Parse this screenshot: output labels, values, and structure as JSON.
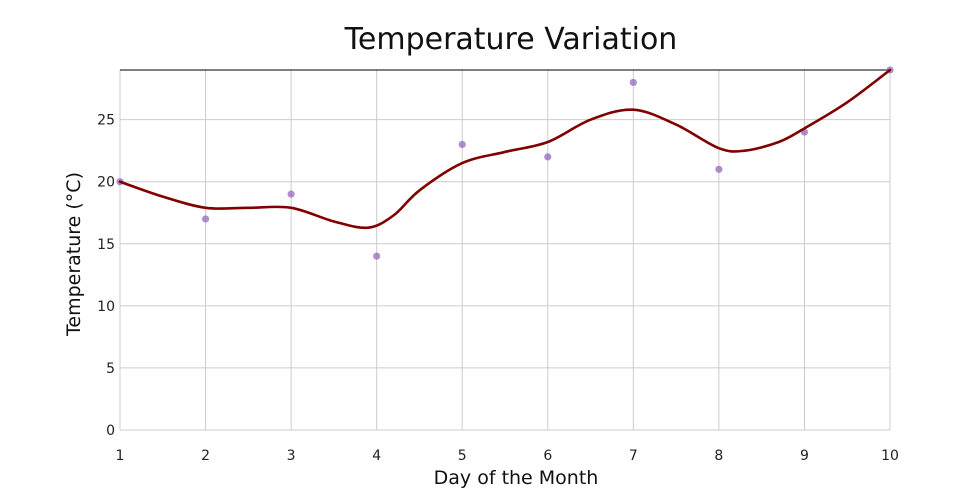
{
  "chart_data": {
    "type": "scatter",
    "title": "Temperature Variation",
    "xlabel": "Day of the Month",
    "ylabel": "Temperature (°C)",
    "x": [
      1,
      2,
      3,
      4,
      5,
      6,
      7,
      8,
      9,
      10
    ],
    "y": [
      20,
      17,
      19,
      14,
      23,
      22,
      28,
      21,
      24,
      29
    ],
    "smooth": {
      "x": [
        1,
        1.5,
        2,
        2.5,
        3,
        3.5,
        3.9,
        4.2,
        4.5,
        5,
        5.5,
        6,
        6.5,
        7,
        7.5,
        8,
        8.3,
        8.7,
        9,
        9.5,
        10
      ],
      "y": [
        20,
        18.8,
        17.9,
        17.9,
        17.9,
        16.8,
        16.3,
        17.3,
        19.3,
        21.5,
        22.4,
        23.2,
        25.0,
        25.8,
        24.6,
        22.7,
        22.5,
        23.2,
        24.3,
        26.4,
        29
      ]
    },
    "xlim": [
      1,
      10
    ],
    "ylim": [
      0,
      29
    ],
    "x_ticks": [
      1,
      2,
      3,
      4,
      5,
      6,
      7,
      8,
      9,
      10
    ],
    "y_ticks": [
      0,
      5,
      10,
      15,
      20,
      25
    ],
    "grid": true,
    "colors": {
      "points": "#9467bd",
      "line": "#800000",
      "grid": "#cccccc"
    }
  }
}
